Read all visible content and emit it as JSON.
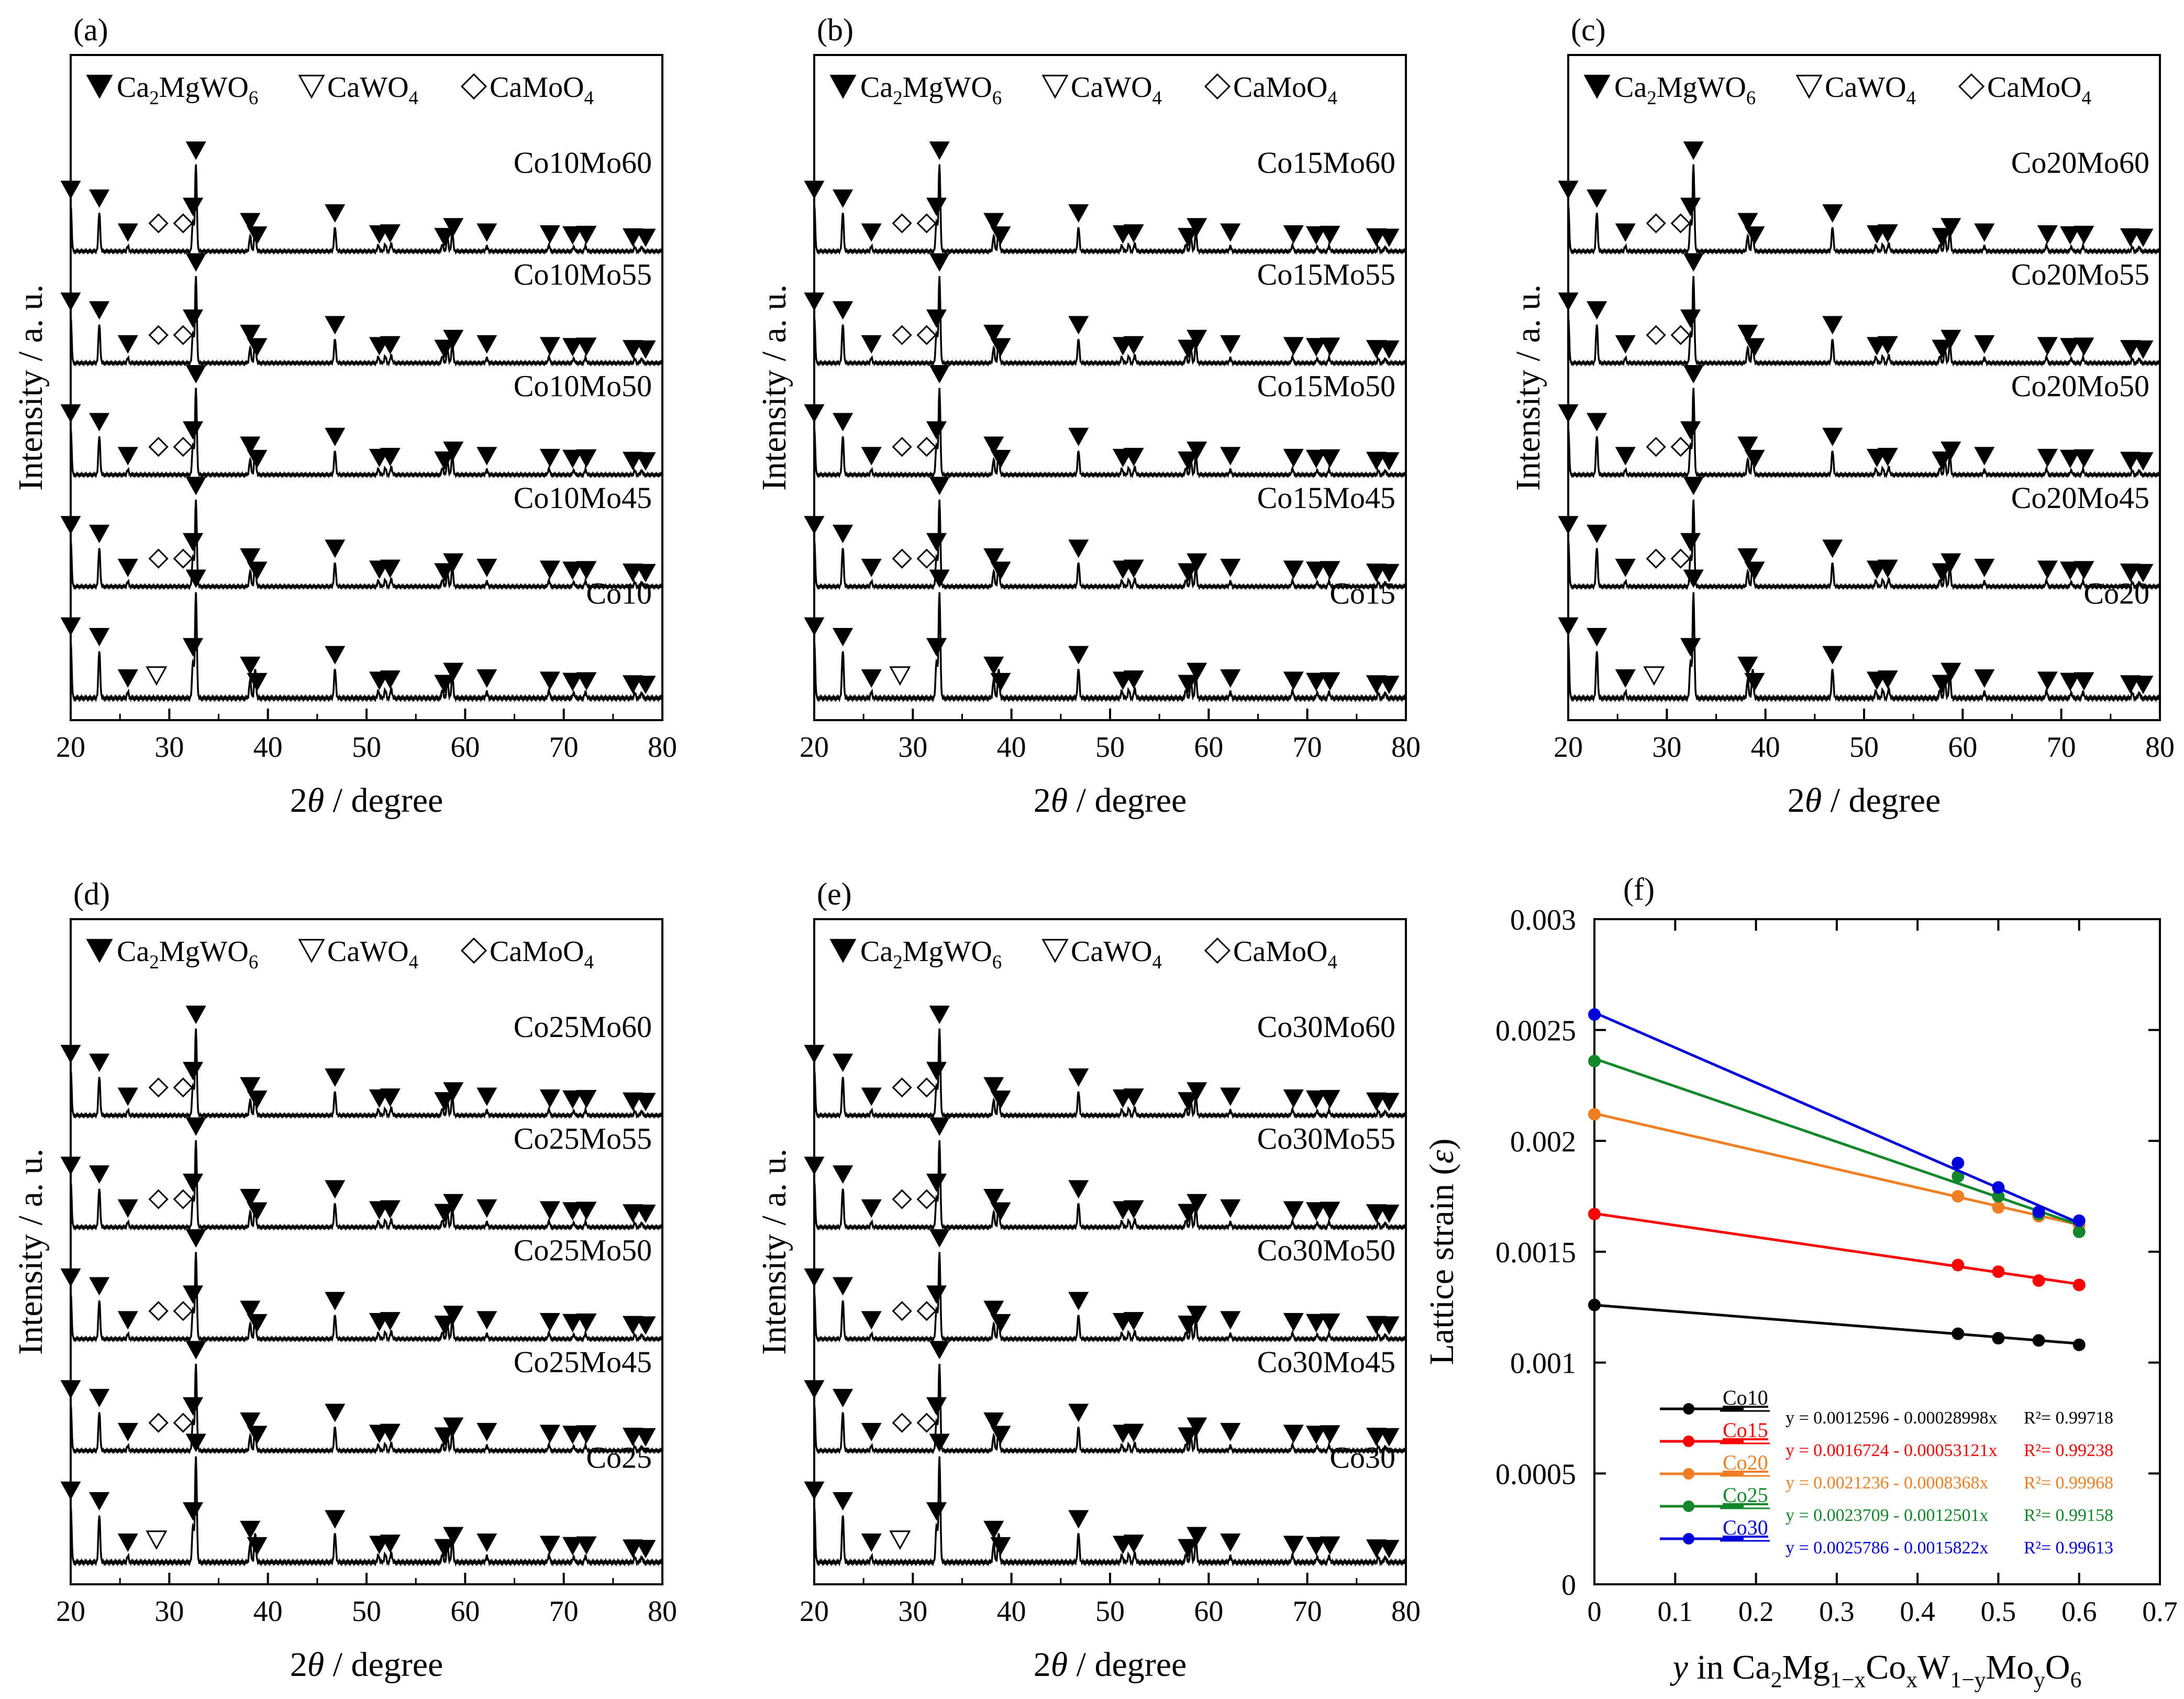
{
  "figure": {
    "legend_labels": [
      "Ca2MgWO6",
      "CaWO4",
      "CaMoO4"
    ],
    "xrd_xlabel": "2θ / degree",
    "xrd_ylabel": "Intensity / a. u.",
    "xrd_xticks": [
      20,
      30,
      40,
      50,
      60,
      70,
      80
    ]
  },
  "chart_data": [
    {
      "type": "line",
      "panel": "(a)",
      "title": "(a)",
      "xlabel": "2θ / degree",
      "ylabel": "Intensity / a. u.",
      "xlim": [
        20,
        80
      ],
      "series": [
        {
          "name": "Co10Mo60",
          "impurity": "CaMoO4"
        },
        {
          "name": "Co10Mo55",
          "impurity": "CaMoO4"
        },
        {
          "name": "Co10Mo50",
          "impurity": "CaMoO4"
        },
        {
          "name": "Co10Mo45",
          "impurity": "CaMoO4"
        },
        {
          "name": "Co10",
          "impurity": "CaWO4"
        }
      ]
    },
    {
      "type": "line",
      "panel": "(b)",
      "title": "(b)",
      "xlabel": "2θ / degree",
      "ylabel": "Intensity / a. u.",
      "xlim": [
        20,
        80
      ],
      "series": [
        {
          "name": "Co15Mo60",
          "impurity": "CaMoO4"
        },
        {
          "name": "Co15Mo55",
          "impurity": "CaMoO4"
        },
        {
          "name": "Co15Mo50",
          "impurity": "CaMoO4"
        },
        {
          "name": "Co15Mo45",
          "impurity": "CaMoO4"
        },
        {
          "name": "Co15",
          "impurity": "CaWO4"
        }
      ]
    },
    {
      "type": "line",
      "panel": "(c)",
      "title": "(c)",
      "xlabel": "2θ / degree",
      "ylabel": "Intensity / a. u.",
      "xlim": [
        20,
        80
      ],
      "series": [
        {
          "name": "Co20Mo60",
          "impurity": "CaMoO4"
        },
        {
          "name": "Co20Mo55",
          "impurity": "CaMoO4"
        },
        {
          "name": "Co20Mo50",
          "impurity": "CaMoO4"
        },
        {
          "name": "Co20Mo45",
          "impurity": "CaMoO4"
        },
        {
          "name": "Co20",
          "impurity": "CaWO4"
        }
      ]
    },
    {
      "type": "line",
      "panel": "(d)",
      "title": "(d)",
      "xlabel": "2θ / degree",
      "ylabel": "Intensity / a. u.",
      "xlim": [
        20,
        80
      ],
      "series": [
        {
          "name": "Co25Mo60",
          "impurity": "CaMoO4"
        },
        {
          "name": "Co25Mo55",
          "impurity": "CaMoO4"
        },
        {
          "name": "Co25Mo50",
          "impurity": "CaMoO4"
        },
        {
          "name": "Co25Mo45",
          "impurity": "CaMoO4"
        },
        {
          "name": "Co25",
          "impurity": "CaWO4"
        }
      ]
    },
    {
      "type": "line",
      "panel": "(e)",
      "title": "(e)",
      "xlabel": "2θ / degree",
      "ylabel": "Intensity / a. u.",
      "xlim": [
        20,
        80
      ],
      "series": [
        {
          "name": "Co30Mo60",
          "impurity": "CaMoO4"
        },
        {
          "name": "Co30Mo55",
          "impurity": "CaMoO4"
        },
        {
          "name": "Co30Mo50",
          "impurity": "CaMoO4"
        },
        {
          "name": "Co30Mo45",
          "impurity": "CaMoO4"
        },
        {
          "name": "Co30",
          "impurity": "CaWO4"
        }
      ]
    },
    {
      "type": "scatter",
      "panel": "(f)",
      "title": "(f)",
      "xlabel": "y in Ca2Mg1−xCoxW1−yMoyO6",
      "ylabel": "Lattice strain (ε)",
      "xlim": [
        0,
        0.7
      ],
      "ylim": [
        0,
        0.003
      ],
      "xticks": [
        "0",
        "0.1",
        "0.2",
        "0.3",
        "0.4",
        "0.5",
        "0.6",
        "0.7"
      ],
      "yticks": [
        "0",
        "0.0005",
        "0.001",
        "0.0015",
        "0.002",
        "0.0025",
        "0.003"
      ],
      "x": [
        0,
        0.45,
        0.5,
        0.55,
        0.6
      ],
      "series": [
        {
          "name": "Co10",
          "color": "#000000",
          "values": [
            0.00126,
            0.00113,
            0.00111,
            0.0011,
            0.00108
          ],
          "equation": "y = 0.0012596 - 0.00028998x",
          "r2": "R²= 0.99718",
          "intercept": 0.0012596,
          "slope": -0.00028998
        },
        {
          "name": "Co15",
          "color": "#ff0000",
          "values": [
            0.00167,
            0.00144,
            0.00141,
            0.00137,
            0.00135
          ],
          "equation": "y = 0.0016724 - 0.00053121x",
          "r2": "R²= 0.99238",
          "intercept": 0.0016724,
          "slope": -0.00053121
        },
        {
          "name": "Co20",
          "color": "#f07f24",
          "values": [
            0.00212,
            0.00175,
            0.0017,
            0.00166,
            0.00162
          ],
          "equation": "y = 0.0021236 - 0.0008368x",
          "r2": "R²= 0.99968",
          "intercept": 0.0021236,
          "slope": -0.0008368
        },
        {
          "name": "Co25",
          "color": "#12882a",
          "values": [
            0.00236,
            0.00184,
            0.00175,
            0.00167,
            0.00159
          ],
          "equation": "y = 0.0023709 - 0.0012501x",
          "r2": "R²= 0.99158",
          "intercept": 0.0023709,
          "slope": -0.0012501
        },
        {
          "name": "Co30",
          "color": "#0000dd",
          "values": [
            0.00257,
            0.0019,
            0.00179,
            0.00168,
            0.00164
          ],
          "equation": "y = 0.0025786 - 0.0015822x",
          "r2": "R²= 0.99613",
          "intercept": 0.0025786,
          "slope": -0.0015822
        }
      ]
    }
  ]
}
